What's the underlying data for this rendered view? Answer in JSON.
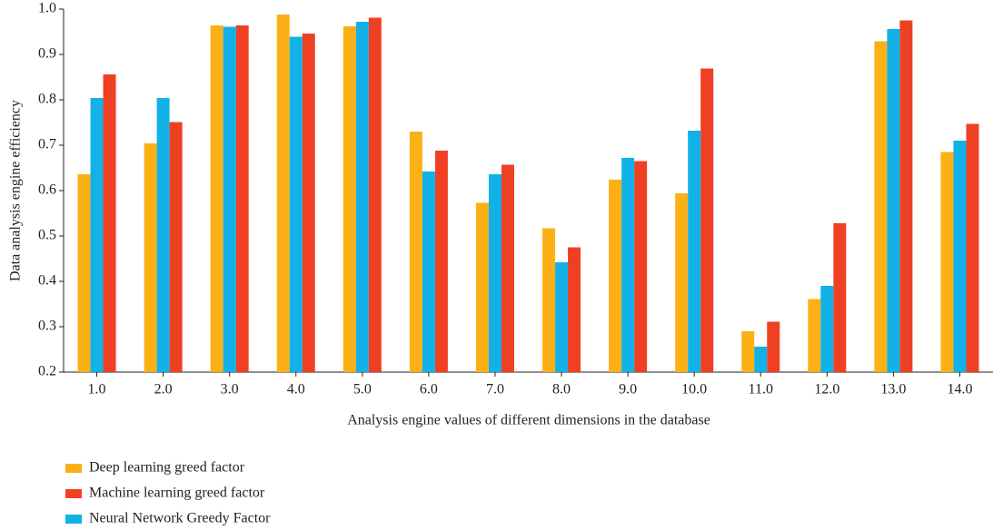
{
  "chart_data": {
    "type": "bar",
    "x_label": "Analysis engine values of different dimensions in the database",
    "y_label": "Data analysis engine efficiency",
    "categories": [
      "1.0",
      "2.0",
      "3.0",
      "4.0",
      "5.0",
      "6.0",
      "7.0",
      "8.0",
      "9.0",
      "10.0",
      "11.0",
      "12.0",
      "13.0",
      "14.0"
    ],
    "series": [
      {
        "name": "Deep learning greed factor",
        "color": "#fbb116",
        "values": [
          0.636,
          0.704,
          0.964,
          0.988,
          0.962,
          0.73,
          0.573,
          0.517,
          0.624,
          0.594,
          0.29,
          0.361,
          0.929,
          0.685
        ]
      },
      {
        "name": "Machine learning greed factor",
        "color": "#ef4023",
        "values": [
          0.856,
          0.751,
          0.964,
          0.946,
          0.981,
          0.688,
          0.657,
          0.475,
          0.665,
          0.869,
          0.311,
          0.528,
          0.975,
          0.747
        ]
      },
      {
        "name": "Neural Network Greedy Factor",
        "color": "#12b1e8",
        "values": [
          0.804,
          0.804,
          0.961,
          0.939,
          0.972,
          0.642,
          0.636,
          0.442,
          0.672,
          0.732,
          0.256,
          0.39,
          0.956,
          0.71
        ]
      }
    ],
    "ylim": [
      0.2,
      1.0
    ],
    "yticks": [
      0.2,
      0.3,
      0.4,
      0.5,
      0.6,
      0.7,
      0.8,
      0.9,
      {
        "value": 1.0,
        "label": "1.0"
      }
    ],
    "grid": false,
    "legend": "bottom-left"
  }
}
